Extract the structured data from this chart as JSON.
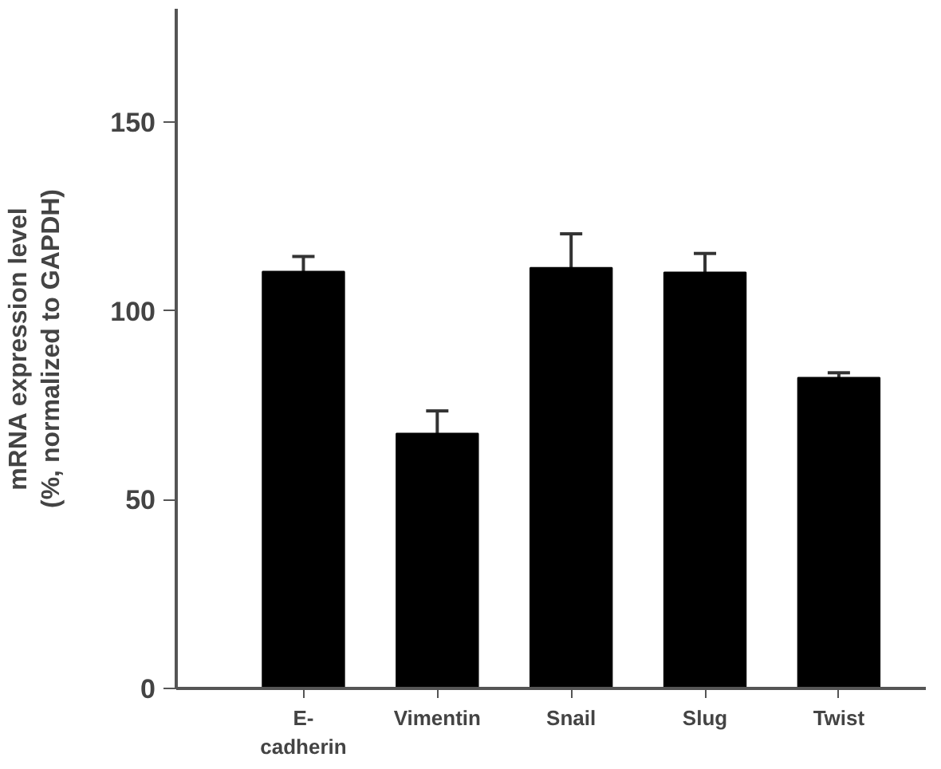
{
  "chart_data": {
    "type": "bar",
    "ylabel": "mRNA expression level (%, normalized to GAPDH)",
    "categories": [
      "E-cadherin",
      "Vimentin",
      "Snail",
      "Slug",
      "Twist"
    ],
    "values": [
      110.4,
      67.5,
      111.4,
      110.2,
      82.3
    ],
    "errors": [
      4,
      6,
      9,
      5,
      1.3
    ],
    "color": "#000000",
    "ylim": [
      0,
      180
    ],
    "yticks": [
      0,
      50,
      100,
      150
    ],
    "grid": false
  }
}
